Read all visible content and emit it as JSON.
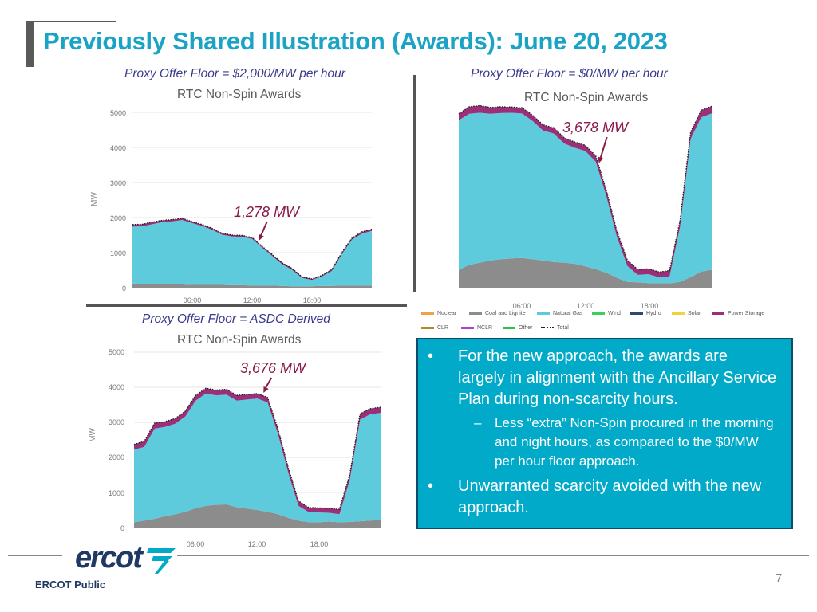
{
  "slide": {
    "title": "Previously Shared Illustration (Awards): June 20, 2023",
    "footer": "ERCOT Public",
    "page_number": "7"
  },
  "charts": [
    {
      "floor_label": "Proxy Offer Floor = $2,000/MW per hour",
      "chart_title": "RTC Non-Spin Awards",
      "annotation": "1,278 MW",
      "ylabel": "MW",
      "yticks": [
        "5000",
        "4000",
        "3000",
        "2000",
        "1000",
        "0"
      ],
      "xticks": [
        "06:00",
        "12:00",
        "18:00"
      ]
    },
    {
      "floor_label": "Proxy Offer Floor = $0/MW per hour",
      "chart_title": "RTC Non-Spin Awards",
      "annotation": "3,678 MW",
      "xticks": [
        "06:00",
        "12:00",
        "18:00"
      ]
    },
    {
      "floor_label": "Proxy Offer Floor = ASDC Derived",
      "chart_title": "RTC Non-Spin Awards",
      "annotation": "3,676 MW",
      "ylabel": "MW",
      "yticks": [
        "5000",
        "4000",
        "3000",
        "2000",
        "1000",
        "0"
      ],
      "xticks": [
        "06:00",
        "12:00",
        "18:00"
      ]
    }
  ],
  "legend": [
    {
      "label": "Nuclear",
      "color": "#f4a04a"
    },
    {
      "label": "Coal and Lignite",
      "color": "#8c8c8c"
    },
    {
      "label": "Natural Gas",
      "color": "#5ecbdc"
    },
    {
      "label": "Wind",
      "color": "#3ccf5a"
    },
    {
      "label": "Hydro",
      "color": "#2e4a6e"
    },
    {
      "label": "Solar",
      "color": "#f2d23c"
    },
    {
      "label": "Power Storage",
      "color": "#9b2f78"
    },
    {
      "label": "CLR",
      "color": "#b8862c"
    },
    {
      "label": "NCLR",
      "color": "#b040d0"
    },
    {
      "label": "Other",
      "color": "#2fc04a"
    },
    {
      "label": "Total",
      "color": "#222222"
    }
  ],
  "callout": {
    "bullet1": "For the new approach, the awards are largely in alignment with the Ancillary Service Plan during non-scarcity hours.",
    "sub1": "Less “extra” Non-Spin procured in the morning and night hours, as compared to the $0/MW per hour floor approach.",
    "bullet2": "Unwarranted scarcity avoided with the new approach.",
    "bullet_char": "•",
    "dash_char": "–"
  },
  "chart_data": [
    {
      "type": "area",
      "title": "RTC Non-Spin Awards",
      "ylabel": "MW",
      "ylim": [
        0,
        5000
      ],
      "x_hours": [
        0,
        1,
        2,
        3,
        4,
        5,
        6,
        7,
        8,
        9,
        10,
        11,
        12,
        13,
        14,
        15,
        16,
        17,
        18,
        19,
        20,
        21,
        22,
        23,
        24
      ],
      "series": [
        {
          "name": "Coal and Lignite",
          "color": "#8c8c8c",
          "values": [
            120,
            110,
            100,
            100,
            90,
            90,
            80,
            80,
            80,
            80,
            70,
            70,
            60,
            60,
            60,
            50,
            40,
            40,
            40,
            50,
            50,
            60,
            60,
            60,
            60
          ]
        },
        {
          "name": "Natural Gas",
          "color": "#5ecbdc",
          "values": [
            1620,
            1640,
            1710,
            1770,
            1800,
            1840,
            1760,
            1680,
            1570,
            1430,
            1390,
            1380,
            1330,
            1080,
            850,
            620,
            470,
            240,
            180,
            270,
            430,
            900,
            1310,
            1480,
            1560
          ]
        },
        {
          "name": "Power Storage",
          "color": "#9b2f78",
          "values": [
            60,
            60,
            60,
            50,
            50,
            50,
            40,
            40,
            40,
            40,
            40,
            40,
            40,
            40,
            40,
            40,
            40,
            30,
            30,
            30,
            40,
            40,
            40,
            50,
            50
          ]
        }
      ],
      "total": [
        1800,
        1810,
        1870,
        1920,
        1940,
        1980,
        1880,
        1800,
        1690,
        1550,
        1500,
        1490,
        1430,
        1180,
        950,
        710,
        550,
        310,
        250,
        350,
        520,
        1000,
        1410,
        1590,
        1670
      ],
      "annotation": {
        "text": "1,278 MW",
        "x_hour": 12.7
      }
    },
    {
      "type": "area",
      "title": "RTC Non-Spin Awards",
      "ylim": [
        0,
        5000
      ],
      "x_hours": [
        0,
        1,
        2,
        3,
        4,
        5,
        6,
        7,
        8,
        9,
        10,
        11,
        12,
        13,
        14,
        15,
        16,
        17,
        18,
        19,
        20,
        21,
        22,
        23,
        24
      ],
      "series": [
        {
          "name": "Coal and Lignite",
          "color": "#8c8c8c",
          "values": [
            500,
            640,
            700,
            760,
            800,
            820,
            830,
            800,
            760,
            720,
            700,
            670,
            600,
            520,
            420,
            280,
            160,
            150,
            130,
            130,
            120,
            160,
            300,
            450,
            500
          ]
        },
        {
          "name": "Natural Gas",
          "color": "#5ecbdc",
          "values": [
            4190,
            4230,
            4200,
            4110,
            4090,
            4080,
            4050,
            3870,
            3640,
            3600,
            3340,
            3250,
            3230,
            3010,
            2150,
            1150,
            450,
            210,
            250,
            160,
            200,
            1550,
            3870,
            4320,
            4380
          ]
        },
        {
          "name": "Power Storage",
          "color": "#9b2f78",
          "values": [
            180,
            200,
            200,
            180,
            180,
            160,
            160,
            160,
            160,
            160,
            160,
            160,
            160,
            160,
            160,
            160,
            160,
            150,
            150,
            150,
            160,
            180,
            190,
            200,
            200
          ]
        }
      ],
      "total": [
        4870,
        5070,
        5100,
        5050,
        5070,
        5060,
        5040,
        4830,
        4560,
        4480,
        4200,
        4080,
        3990,
        3690,
        2730,
        1590,
        770,
        510,
        530,
        440,
        480,
        1890,
        4360,
        4970,
        5080
      ],
      "annotation": {
        "text": "3,678 MW",
        "x_hour": 13.3
      }
    },
    {
      "type": "area",
      "title": "RTC Non-Spin Awards",
      "ylabel": "MW",
      "ylim": [
        0,
        5000
      ],
      "x_hours": [
        0,
        1,
        2,
        3,
        4,
        5,
        6,
        7,
        8,
        9,
        10,
        11,
        12,
        13,
        14,
        15,
        16,
        17,
        18,
        19,
        20,
        21,
        22,
        23,
        24
      ],
      "series": [
        {
          "name": "Coal and Lignite",
          "color": "#8c8c8c",
          "values": [
            150,
            200,
            250,
            320,
            380,
            450,
            550,
            620,
            650,
            660,
            580,
            540,
            500,
            450,
            380,
            280,
            200,
            150,
            150,
            170,
            150,
            160,
            180,
            200,
            220
          ]
        },
        {
          "name": "Natural Gas",
          "color": "#5ecbdc",
          "values": [
            2070,
            2100,
            2570,
            2550,
            2580,
            2720,
            3070,
            3200,
            3120,
            3130,
            3040,
            3110,
            3180,
            3120,
            2300,
            1300,
            420,
            290,
            280,
            250,
            230,
            1200,
            2900,
            3030,
            3050
          ]
        },
        {
          "name": "Power Storage",
          "color": "#9b2f78",
          "values": [
            150,
            160,
            160,
            150,
            150,
            150,
            150,
            150,
            150,
            150,
            150,
            140,
            140,
            140,
            140,
            140,
            140,
            130,
            130,
            130,
            140,
            150,
            160,
            160,
            160
          ]
        }
      ],
      "total": [
        2370,
        2460,
        2980,
        3020,
        3110,
        3320,
        3770,
        3970,
        3920,
        3940,
        3770,
        3790,
        3820,
        3710,
        2820,
        1720,
        760,
        570,
        560,
        550,
        520,
        1510,
        3240,
        3390,
        3430
      ],
      "annotation": {
        "text": "3,676 MW",
        "x_hour": 12.6
      }
    }
  ]
}
